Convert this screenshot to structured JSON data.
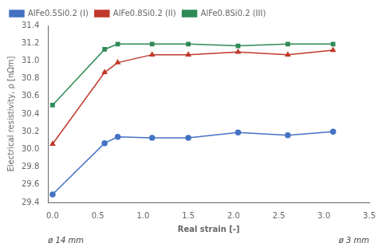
{
  "chart_data": {
    "type": "line",
    "xlabel": "Real strain [-]",
    "ylabel": "Electrical resistivity, ρ [nΩm]",
    "x": [
      0,
      0.575,
      0.72,
      1.1,
      1.5,
      2.05,
      2.6,
      3.1
    ],
    "series": [
      {
        "name": "AlFe0.5Si0.2 (I)",
        "color": "#4472c4",
        "marker": "circle",
        "values": [
          29.49,
          30.07,
          30.14,
          30.13,
          30.13,
          30.19,
          30.16,
          30.2
        ]
      },
      {
        "name": "AlFe0.8Si0.2 (II)",
        "color": "#c0392b",
        "marker": "triangle",
        "values": [
          30.06,
          30.87,
          30.98,
          31.07,
          31.07,
          31.1,
          31.07,
          31.12
        ]
      },
      {
        "name": "AlFe0.8Si0.2 (III)",
        "color": "#2e8b57",
        "marker": "square",
        "values": [
          30.5,
          31.13,
          31.19,
          31.19,
          31.19,
          31.17,
          31.19,
          31.19
        ]
      }
    ],
    "xlim": [
      -0.05,
      3.5
    ],
    "ylim": [
      29.4,
      31.4
    ],
    "xticks": [
      {
        "value": 0,
        "label": "0.0"
      },
      0.5,
      {
        "value": 1,
        "label": "1.0"
      },
      1.5,
      {
        "value": 2,
        "label": "2.0"
      },
      2.5,
      {
        "value": 3,
        "label": "3.0"
      },
      3.5
    ],
    "yticks": [
      29.4,
      29.6,
      29.8,
      {
        "value": 30,
        "label": "30.0"
      },
      30.2,
      30.4,
      30.6,
      30.8,
      {
        "value": 31,
        "label": "31.0"
      },
      31.2,
      31.4
    ],
    "annotations": [
      "ø 14 mm",
      "ø 3 mm"
    ],
    "legend": "upper left",
    "grid": false
  }
}
